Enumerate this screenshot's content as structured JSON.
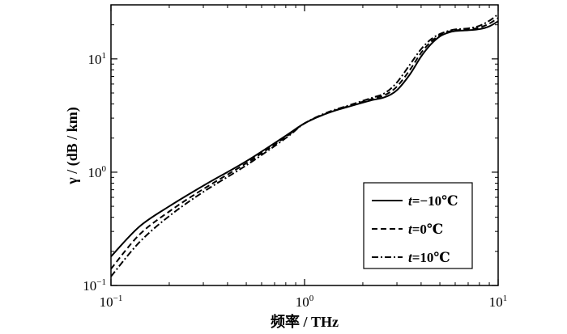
{
  "chart_data": {
    "type": "line",
    "xscale": "log",
    "yscale": "log",
    "xlim": [
      0.1,
      10
    ],
    "ylim": [
      0.1,
      30
    ],
    "xlabel": "频率 / THz",
    "ylabel": "γ / (dB / km)",
    "x_ticks": [
      {
        "value": 0.1,
        "base": "10",
        "exp": "−1"
      },
      {
        "value": 1,
        "base": "10",
        "exp": "0"
      },
      {
        "value": 10,
        "base": "10",
        "exp": "1"
      }
    ],
    "y_ticks": [
      {
        "value": 0.1,
        "base": "10",
        "exp": "−1"
      },
      {
        "value": 1,
        "base": "10",
        "exp": "0"
      },
      {
        "value": 10,
        "base": "10",
        "exp": "1"
      }
    ],
    "legend_position": "lower-right",
    "series": [
      {
        "name": "t=−10℃",
        "name_var": "t",
        "name_rest": "=−10℃",
        "style": "solid",
        "x": [
          0.1,
          0.14,
          0.2,
          0.3,
          0.5,
          0.8,
          1.0,
          1.3,
          1.7,
          2.2,
          2.6,
          3.0,
          3.5,
          4.0,
          4.5,
          5.0,
          5.5,
          6.0,
          7.0,
          8.0,
          9.0,
          10.0
        ],
        "y": [
          0.18,
          0.33,
          0.5,
          0.76,
          1.25,
          2.1,
          2.7,
          3.3,
          3.8,
          4.3,
          4.6,
          5.3,
          7.3,
          10.5,
          13.5,
          15.8,
          17.0,
          17.6,
          17.9,
          18.3,
          19.4,
          21.5
        ]
      },
      {
        "name": "t=0℃",
        "name_var": "t",
        "name_rest": "=0℃",
        "style": "dashed",
        "x": [
          0.1,
          0.14,
          0.2,
          0.3,
          0.5,
          0.8,
          1.0,
          1.3,
          1.7,
          2.2,
          2.6,
          3.0,
          3.5,
          4.0,
          4.5,
          5.0,
          5.5,
          6.0,
          7.0,
          8.0,
          9.0,
          10.0
        ],
        "y": [
          0.14,
          0.28,
          0.45,
          0.71,
          1.2,
          2.05,
          2.7,
          3.3,
          3.85,
          4.4,
          4.8,
          5.7,
          8.0,
          11.3,
          14.2,
          16.2,
          17.3,
          17.9,
          18.2,
          18.9,
          20.5,
          23.0
        ]
      },
      {
        "name": "t=10℃",
        "name_var": "t",
        "name_rest": "=10℃",
        "style": "dashdot",
        "x": [
          0.1,
          0.14,
          0.2,
          0.3,
          0.5,
          0.8,
          1.0,
          1.3,
          1.7,
          2.2,
          2.6,
          3.0,
          3.5,
          4.0,
          4.5,
          5.0,
          5.5,
          6.0,
          7.0,
          8.0,
          9.0,
          10.0
        ],
        "y": [
          0.12,
          0.24,
          0.41,
          0.67,
          1.15,
          2.0,
          2.7,
          3.35,
          3.9,
          4.5,
          5.0,
          6.2,
          8.9,
          12.2,
          14.9,
          16.6,
          17.6,
          18.2,
          18.6,
          19.6,
          21.7,
          24.8
        ]
      }
    ]
  }
}
